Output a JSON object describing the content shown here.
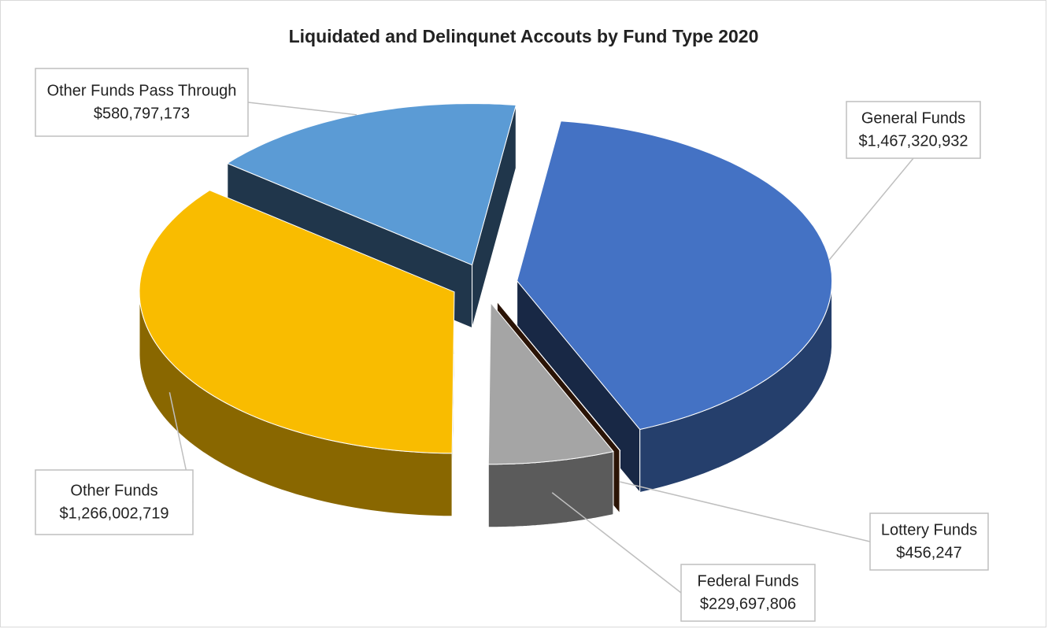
{
  "chart_data": {
    "type": "pie",
    "title": "Liquidated and Delinqunet Accouts by Fund Type 2020",
    "categories": [
      "General Funds",
      "Lottery Funds",
      "Federal Funds",
      "Other Funds",
      "Other Funds Pass Through"
    ],
    "values": [
      1467320932,
      456247,
      229697806,
      1266002719,
      580797173
    ],
    "value_labels": [
      "$1,467,320,932",
      "$456,247",
      "$229,697,806",
      "$1,266,002,719",
      "$580,797,173"
    ],
    "colors": [
      "#4472c4",
      "#7a3a12",
      "#a5a5a5",
      "#f9bc00",
      "#5b9bd5"
    ]
  }
}
